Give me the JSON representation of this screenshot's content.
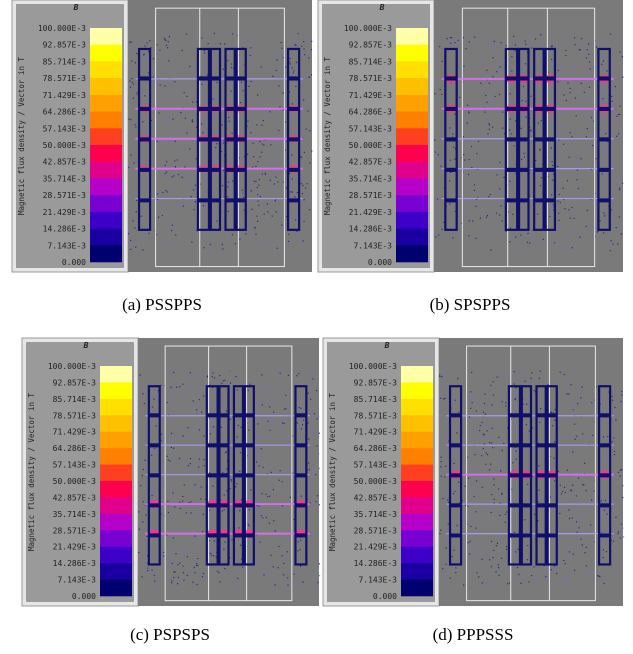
{
  "panels": [
    {
      "legend_title": "B",
      "axis_label": "Magnetic flux density / Vector in T",
      "scale_labels": [
        "100.000E-3",
        "92.857E-3",
        "85.714E-3",
        "78.571E-3",
        "71.429E-3",
        "64.286E-3",
        "57.143E-3",
        "50.000E-3",
        "42.857E-3",
        "35.714E-3",
        "28.571E-3",
        "21.429E-3",
        "14.286E-3",
        "7.143E-3",
        "0.000"
      ],
      "caption": "(a) PSSPPS"
    },
    {
      "legend_title": "B",
      "axis_label": "Magnetic flux density / Vector in T",
      "scale_labels": [
        "100.000E-3",
        "92.857E-3",
        "85.714E-3",
        "78.571E-3",
        "71.429E-3",
        "64.286E-3",
        "57.143E-3",
        "50.000E-3",
        "42.857E-3",
        "35.714E-3",
        "28.571E-3",
        "21.429E-3",
        "14.286E-3",
        "7.143E-3",
        "0.000"
      ],
      "caption": "(b) SPSPPS"
    },
    {
      "legend_title": "B",
      "axis_label": "Magnetic flux density / Vector in T",
      "scale_labels": [
        "100.000E-3",
        "92.857E-3",
        "85.714E-3",
        "78.571E-3",
        "71.429E-3",
        "64.286E-3",
        "57.143E-3",
        "50.000E-3",
        "42.857E-3",
        "35.714E-3",
        "28.571E-3",
        "21.429E-3",
        "14.286E-3",
        "7.143E-3",
        "0.000"
      ],
      "caption": "(c) PSPSPS"
    },
    {
      "legend_title": "B",
      "axis_label": "Magnetic flux density / Vector in T",
      "scale_labels": [
        "100.000E-3",
        "92.857E-3",
        "85.714E-3",
        "78.571E-3",
        "71.429E-3",
        "64.286E-3",
        "57.143E-3",
        "50.000E-3",
        "42.857E-3",
        "35.714E-3",
        "28.571E-3",
        "21.429E-3",
        "14.286E-3",
        "7.143E-3",
        "0.000"
      ],
      "caption": "(d) PPPSSS"
    }
  ]
}
